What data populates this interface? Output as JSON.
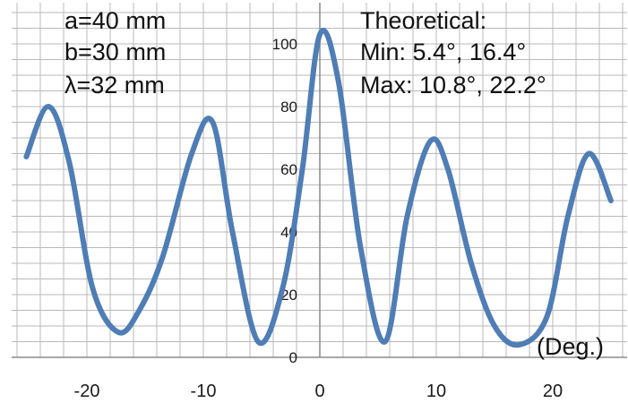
{
  "chart_data": {
    "type": "line",
    "title": "",
    "xlabel": "(Deg.)",
    "ylabel": "",
    "xlim": [
      -26,
      26
    ],
    "ylim": [
      0,
      105
    ],
    "x_ticks": [
      -20,
      -10,
      0,
      10,
      20
    ],
    "y_ticks": [
      0,
      20,
      40,
      60,
      80,
      100
    ],
    "grid": true,
    "color": "#4f7db5",
    "series": [
      {
        "name": "",
        "x": [
          -25.2,
          -23.3,
          -21.5,
          -19.5,
          -17.3,
          -15.5,
          -13.5,
          -11.0,
          -9.2,
          -7.5,
          -5.3,
          -3.2,
          -1.5,
          0.0,
          1.6,
          3.5,
          5.6,
          7.5,
          9.5,
          11.0,
          13.0,
          15.0,
          17.1,
          19.5,
          21.3,
          23.1,
          25.0
        ],
        "y": [
          64,
          80,
          62,
          22,
          8,
          15,
          32,
          65,
          75,
          40,
          5,
          22,
          60,
          103,
          88,
          35,
          5,
          45,
          69,
          60,
          30,
          10,
          4,
          13,
          45,
          65,
          50
        ]
      }
    ],
    "annotations": {
      "params": [
        "a=40 mm",
        "b=30 mm",
        "λ=32 mm"
      ],
      "theory": [
        "Theoretical:",
        "Min: 5.4°, 16.4°",
        "Max: 10.8°, 22.2°"
      ]
    }
  }
}
